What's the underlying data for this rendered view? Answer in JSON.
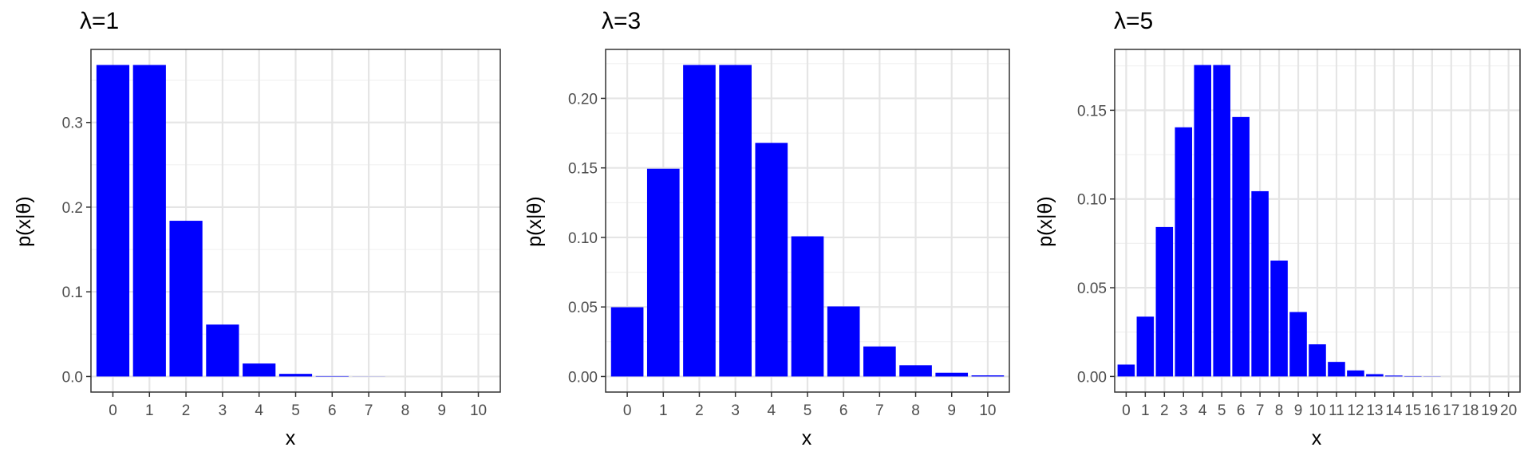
{
  "chart_data": [
    {
      "type": "bar",
      "title": "λ=1",
      "xlabel": "x",
      "ylabel": "p(x|θ)",
      "categories": [
        "0",
        "1",
        "2",
        "3",
        "4",
        "5",
        "6",
        "7",
        "8",
        "9",
        "10"
      ],
      "values": [
        0.3679,
        0.3679,
        0.1839,
        0.0613,
        0.0153,
        0.0031,
        0.0005,
        0.0001,
        0.0,
        0.0,
        0.0
      ],
      "yticks": [
        "0.0",
        "0.1",
        "0.2",
        "0.3"
      ],
      "ytick_values": [
        0,
        0.1,
        0.2,
        0.3
      ],
      "ylim": [
        -0.0184,
        0.3863
      ],
      "grid": true,
      "bar_color": "#0000ff"
    },
    {
      "type": "bar",
      "title": "λ=3",
      "xlabel": "x",
      "ylabel": "p(x|θ)",
      "categories": [
        "0",
        "1",
        "2",
        "3",
        "4",
        "5",
        "6",
        "7",
        "8",
        "9",
        "10"
      ],
      "values": [
        0.0498,
        0.1494,
        0.224,
        0.224,
        0.168,
        0.1008,
        0.0504,
        0.0216,
        0.0081,
        0.0027,
        0.0008
      ],
      "yticks": [
        "0.00",
        "0.05",
        "0.10",
        "0.15",
        "0.20"
      ],
      "ytick_values": [
        0,
        0.05,
        0.1,
        0.15,
        0.2
      ],
      "ylim": [
        -0.0112,
        0.2352
      ],
      "grid": true,
      "bar_color": "#0000ff"
    },
    {
      "type": "bar",
      "title": "λ=5",
      "xlabel": "x",
      "ylabel": "p(x|θ)",
      "categories": [
        "0",
        "1",
        "2",
        "3",
        "4",
        "5",
        "6",
        "7",
        "8",
        "9",
        "10",
        "11",
        "12",
        "13",
        "14",
        "15",
        "16",
        "17",
        "18",
        "19",
        "20"
      ],
      "values": [
        0.0067,
        0.0337,
        0.0842,
        0.1404,
        0.1755,
        0.1755,
        0.1462,
        0.1044,
        0.0653,
        0.0363,
        0.0181,
        0.0082,
        0.0034,
        0.0013,
        0.0005,
        0.0002,
        0.0001,
        0.0,
        0.0,
        0.0,
        0.0
      ],
      "yticks": [
        "0.00",
        "0.05",
        "0.10",
        "0.15"
      ],
      "ytick_values": [
        0,
        0.05,
        0.1,
        0.15
      ],
      "ylim": [
        -0.0088,
        0.1843
      ],
      "grid": true,
      "bar_color": "#0000ff"
    }
  ]
}
